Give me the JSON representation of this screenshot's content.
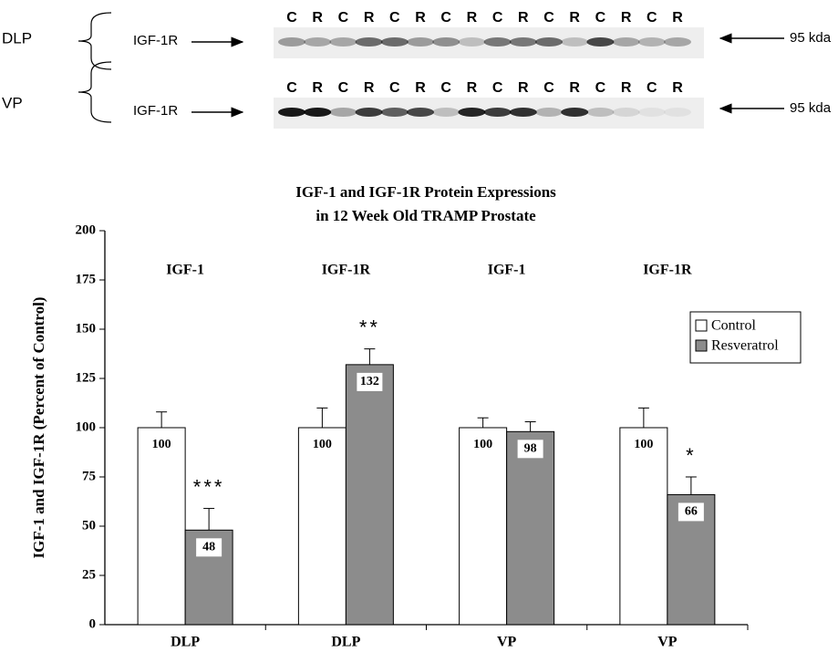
{
  "blots": [
    {
      "tissue": "DLP",
      "protein": "IGF-1R",
      "lanes": [
        "C",
        "R",
        "C",
        "R",
        "C",
        "R",
        "C",
        "R",
        "C",
        "R",
        "C",
        "R",
        "C",
        "R",
        "C",
        "R"
      ],
      "marker": "95 kda"
    },
    {
      "tissue": "VP",
      "protein": "IGF-1R",
      "lanes": [
        "C",
        "R",
        "C",
        "R",
        "C",
        "R",
        "C",
        "R",
        "C",
        "R",
        "C",
        "R",
        "C",
        "R",
        "C",
        "R"
      ],
      "marker": "95 kda"
    }
  ],
  "chart_data": {
    "type": "bar",
    "title": [
      "IGF-1 and IGF-1R Protein Expressions",
      "in 12 Week Old TRAMP Prostate"
    ],
    "y_label": "IGF-1 and IGF-1R (Percent of Control)",
    "categories": [
      "DLP",
      "DLP",
      "VP",
      "VP"
    ],
    "group_labels": [
      "IGF-1",
      "IGF-1R",
      "IGF-1",
      "IGF-1R"
    ],
    "series": [
      {
        "name": "Control",
        "color": "#ffffff",
        "values": [
          100,
          100,
          100,
          100
        ],
        "errors": [
          8,
          10,
          5,
          10
        ]
      },
      {
        "name": "Resveratrol",
        "color": "#8c8c8c",
        "values": [
          48,
          132,
          98,
          66
        ],
        "errors": [
          11,
          8,
          5,
          9
        ]
      }
    ],
    "significance": [
      "***",
      "**",
      null,
      "*"
    ],
    "ylim": [
      0,
      200
    ],
    "yticks": [
      0,
      25,
      50,
      75,
      100,
      125,
      150,
      175,
      200
    ],
    "legend": "right"
  }
}
